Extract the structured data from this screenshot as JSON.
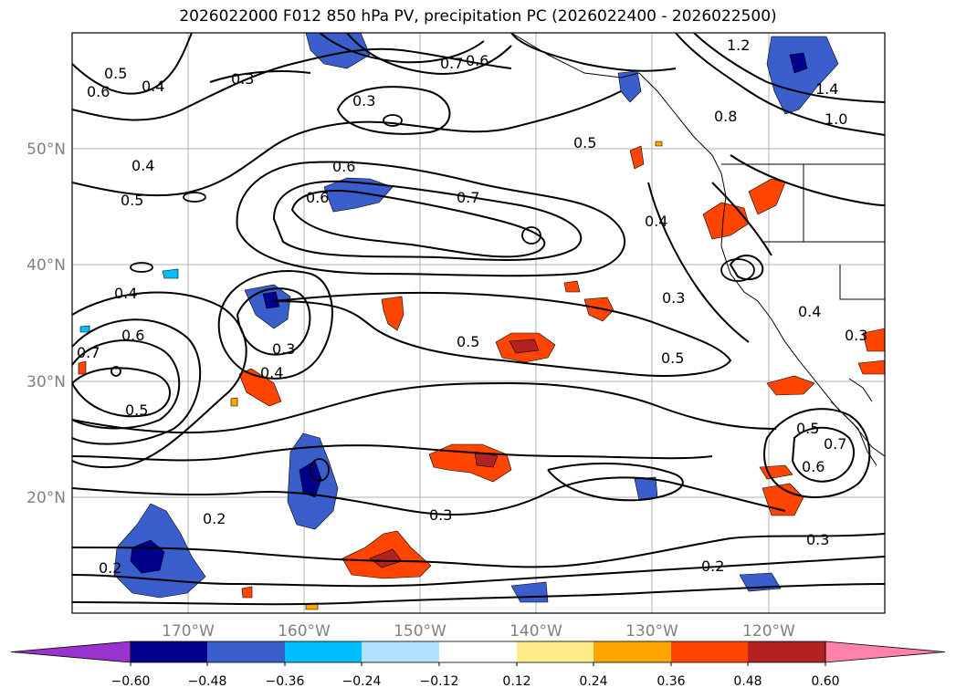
{
  "title": "2026022000 F012 850 hPa PV, precipitation PC (2026022400 - 2026022500)",
  "lat_labels": [
    "50°N",
    "40°N",
    "30°N",
    "20°N"
  ],
  "lon_labels": [
    "170°W",
    "160°W",
    "150°W",
    "140°W",
    "130°W",
    "120°W"
  ],
  "colorbar": {
    "labels": [
      "−0.60",
      "−0.48",
      "−0.36",
      "−0.24",
      "−0.12",
      "0.12",
      "0.24",
      "0.36",
      "0.48",
      "0.60"
    ],
    "colors": [
      "#9a32cd",
      "#00008b",
      "#3a5fcd",
      "#00bfff",
      "#b0e2ff",
      "#ffffff",
      "#ffec8b",
      "#ffa500",
      "#ff4500",
      "#b22222",
      "#ff82ab"
    ]
  },
  "contour_labels": [
    "0.5",
    "0.6",
    "0.4",
    "0.3",
    "0.3",
    "0.7",
    "0.6",
    "1.2",
    "1.4",
    "1.0",
    "0.8",
    "0.4",
    "0.5",
    "0.6",
    "0.7",
    "0.5",
    "0.4",
    "0.6",
    "0.4",
    "0.3",
    "0.4",
    "0.6",
    "0.5",
    "0.5",
    "0.5",
    "0.4",
    "0.2",
    "0.3",
    "0.3",
    "0.2",
    "0.2",
    "0.5",
    "0.6",
    "0.7",
    "0.3",
    "0.7",
    "0.3"
  ],
  "colors": {
    "land": "#ffffff",
    "contour": "#000000",
    "grid": "#b0b0b0"
  }
}
